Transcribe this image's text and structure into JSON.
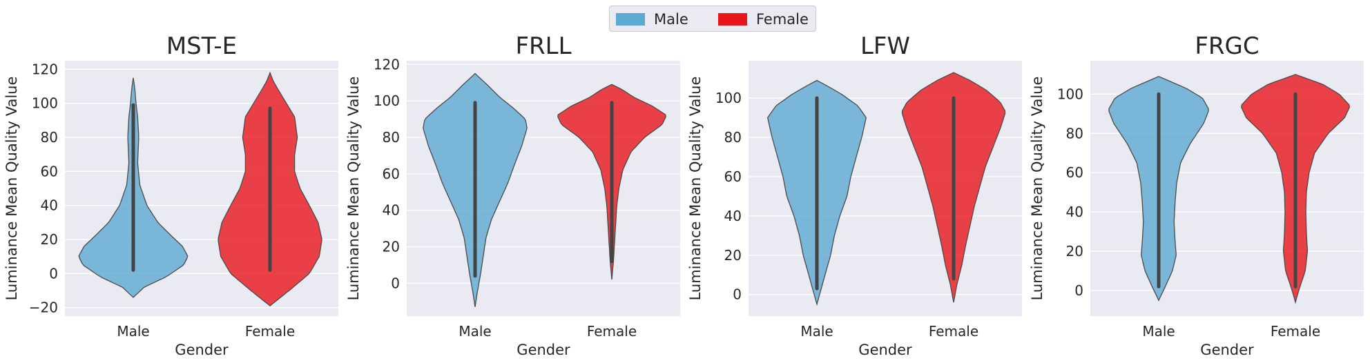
{
  "legend": {
    "items": [
      {
        "label": "Male",
        "color": "#5ea9cf"
      },
      {
        "label": "Female",
        "color": "#e8151b"
      }
    ]
  },
  "chart_data": [
    {
      "type": "violin",
      "title": "MST-E",
      "xlabel": "Gender",
      "ylabel": "Luminance Mean Quality Value",
      "categories": [
        "Male",
        "Female"
      ],
      "ylim": [
        -25,
        125
      ],
      "yticks": [
        -20,
        0,
        20,
        40,
        60,
        80,
        100,
        120
      ],
      "grid": true,
      "series": [
        {
          "name": "Male",
          "range": [
            -14,
            115
          ],
          "profile": [
            [
              -14,
              0.0
            ],
            [
              -8,
              0.2
            ],
            [
              -2,
              0.6
            ],
            [
              5,
              0.92
            ],
            [
              10,
              1.0
            ],
            [
              16,
              0.9
            ],
            [
              22,
              0.7
            ],
            [
              30,
              0.45
            ],
            [
              40,
              0.25
            ],
            [
              52,
              0.12
            ],
            [
              65,
              0.08
            ],
            [
              80,
              0.1
            ],
            [
              92,
              0.08
            ],
            [
              100,
              0.05
            ],
            [
              108,
              0.03
            ],
            [
              115,
              0.0
            ]
          ],
          "box_range": [
            2,
            99
          ]
        },
        {
          "name": "Female",
          "range": [
            -19,
            118
          ],
          "profile": [
            [
              -19,
              0.0
            ],
            [
              -10,
              0.35
            ],
            [
              0,
              0.72
            ],
            [
              10,
              0.9
            ],
            [
              20,
              0.95
            ],
            [
              30,
              0.88
            ],
            [
              40,
              0.72
            ],
            [
              50,
              0.55
            ],
            [
              60,
              0.45
            ],
            [
              70,
              0.45
            ],
            [
              80,
              0.5
            ],
            [
              92,
              0.45
            ],
            [
              100,
              0.3
            ],
            [
              108,
              0.15
            ],
            [
              113,
              0.06
            ],
            [
              118,
              0.0
            ]
          ],
          "box_range": [
            2,
            97
          ]
        }
      ]
    },
    {
      "type": "violin",
      "title": "FRLL",
      "xlabel": "Gender",
      "ylabel": "Luminance Mean Quality Value",
      "categories": [
        "Male",
        "Female"
      ],
      "ylim": [
        -18,
        122
      ],
      "yticks": [
        0,
        20,
        40,
        60,
        80,
        100,
        120
      ],
      "grid": true,
      "series": [
        {
          "name": "Male",
          "range": [
            -13,
            115
          ],
          "profile": [
            [
              -13,
              0.0
            ],
            [
              -5,
              0.04
            ],
            [
              5,
              0.1
            ],
            [
              15,
              0.15
            ],
            [
              25,
              0.2
            ],
            [
              35,
              0.3
            ],
            [
              45,
              0.45
            ],
            [
              55,
              0.6
            ],
            [
              65,
              0.72
            ],
            [
              75,
              0.85
            ],
            [
              85,
              0.95
            ],
            [
              90,
              0.92
            ],
            [
              96,
              0.7
            ],
            [
              102,
              0.45
            ],
            [
              108,
              0.25
            ],
            [
              115,
              0.0
            ]
          ],
          "box_range": [
            4,
            99
          ]
        },
        {
          "name": "Female",
          "range": [
            2,
            109
          ],
          "profile": [
            [
              2,
              0.0
            ],
            [
              12,
              0.03
            ],
            [
              22,
              0.05
            ],
            [
              32,
              0.07
            ],
            [
              42,
              0.09
            ],
            [
              52,
              0.13
            ],
            [
              62,
              0.2
            ],
            [
              72,
              0.35
            ],
            [
              80,
              0.6
            ],
            [
              87,
              0.92
            ],
            [
              92,
              1.0
            ],
            [
              97,
              0.75
            ],
            [
              102,
              0.4
            ],
            [
              106,
              0.2
            ],
            [
              109,
              0.0
            ]
          ],
          "box_range": [
            12,
            99
          ]
        }
      ]
    },
    {
      "type": "violin",
      "title": "LFW",
      "xlabel": "Gender",
      "ylabel": "Luminance Mean Quality Value",
      "categories": [
        "Male",
        "Female"
      ],
      "ylim": [
        -11,
        119
      ],
      "yticks": [
        0,
        20,
        40,
        60,
        80,
        100
      ],
      "grid": true,
      "series": [
        {
          "name": "Male",
          "range": [
            -5,
            109
          ],
          "profile": [
            [
              -5,
              0.0
            ],
            [
              0,
              0.05
            ],
            [
              10,
              0.15
            ],
            [
              20,
              0.25
            ],
            [
              30,
              0.32
            ],
            [
              40,
              0.42
            ],
            [
              50,
              0.55
            ],
            [
              60,
              0.62
            ],
            [
              70,
              0.72
            ],
            [
              80,
              0.82
            ],
            [
              90,
              0.9
            ],
            [
              96,
              0.75
            ],
            [
              102,
              0.45
            ],
            [
              106,
              0.2
            ],
            [
              109,
              0.0
            ]
          ],
          "box_range": [
            3,
            100
          ]
        },
        {
          "name": "Female",
          "range": [
            -4,
            113
          ],
          "profile": [
            [
              -4,
              0.0
            ],
            [
              5,
              0.06
            ],
            [
              15,
              0.15
            ],
            [
              25,
              0.22
            ],
            [
              35,
              0.3
            ],
            [
              45,
              0.38
            ],
            [
              55,
              0.48
            ],
            [
              65,
              0.58
            ],
            [
              75,
              0.72
            ],
            [
              85,
              0.86
            ],
            [
              93,
              0.95
            ],
            [
              98,
              0.85
            ],
            [
              104,
              0.6
            ],
            [
              109,
              0.3
            ],
            [
              113,
              0.0
            ]
          ],
          "box_range": [
            8,
            100
          ]
        }
      ]
    },
    {
      "type": "violin",
      "title": "FRGC",
      "xlabel": "Gender",
      "ylabel": "Luminance Mean Quality Value",
      "categories": [
        "Male",
        "Female"
      ],
      "ylim": [
        -13,
        117
      ],
      "yticks": [
        0,
        20,
        40,
        60,
        80,
        100
      ],
      "grid": true,
      "series": [
        {
          "name": "Male",
          "range": [
            -5,
            109
          ],
          "profile": [
            [
              -5,
              0.0
            ],
            [
              2,
              0.12
            ],
            [
              10,
              0.25
            ],
            [
              18,
              0.32
            ],
            [
              25,
              0.3
            ],
            [
              35,
              0.28
            ],
            [
              45,
              0.3
            ],
            [
              55,
              0.33
            ],
            [
              65,
              0.4
            ],
            [
              75,
              0.58
            ],
            [
              85,
              0.82
            ],
            [
              92,
              0.92
            ],
            [
              98,
              0.8
            ],
            [
              103,
              0.5
            ],
            [
              109,
              0.0
            ]
          ],
          "box_range": [
            2,
            100
          ]
        },
        {
          "name": "Female",
          "range": [
            -6,
            110
          ],
          "profile": [
            [
              -6,
              0.0
            ],
            [
              0,
              0.06
            ],
            [
              10,
              0.18
            ],
            [
              20,
              0.22
            ],
            [
              30,
              0.2
            ],
            [
              40,
              0.19
            ],
            [
              50,
              0.2
            ],
            [
              60,
              0.25
            ],
            [
              70,
              0.35
            ],
            [
              80,
              0.6
            ],
            [
              88,
              0.9
            ],
            [
              94,
              1.0
            ],
            [
              100,
              0.8
            ],
            [
              105,
              0.5
            ],
            [
              110,
              0.0
            ]
          ],
          "box_range": [
            2,
            100
          ]
        }
      ]
    }
  ]
}
